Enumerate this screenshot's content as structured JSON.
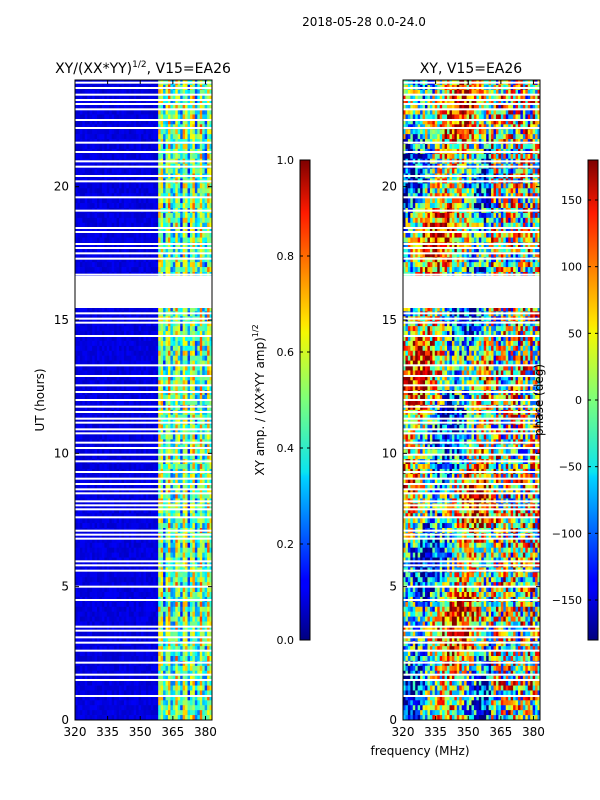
{
  "figure_title": "2018-05-28 0.0-24.0",
  "chart_data": [
    {
      "type": "heatmap",
      "title": "XY/(XX*YY)",
      "title_exponent": "1/2",
      "title_suffix": ", V15=EA26",
      "xlabel": "",
      "ylabel": "UT (hours)",
      "xlim": [
        320,
        383
      ],
      "ylim": [
        0,
        24
      ],
      "xticks": [
        "320",
        "335",
        "350",
        "365",
        "380"
      ],
      "yticks": [
        "0",
        "5",
        "10",
        "15",
        "20"
      ],
      "colormap": "jet",
      "colorbar": {
        "label": "XY amp. / (XX*YY amp)",
        "label_exponent": "1/2",
        "range": [
          0.0,
          1.0
        ],
        "ticks": [
          "0.0",
          "0.2",
          "0.4",
          "0.6",
          "0.8",
          "1.0"
        ]
      },
      "notes": "Low (~0.05) amplitude below ~358 MHz; bright vertical streaks 360-382 MHz; no data 16.5-15.5 UT gap"
    },
    {
      "type": "heatmap",
      "title": "XY, V15=EA26",
      "xlabel": "frequency (MHz)",
      "ylabel": "",
      "xlim": [
        320,
        383
      ],
      "ylim": [
        0,
        24
      ],
      "xticks": [
        "320",
        "335",
        "350",
        "365",
        "380"
      ],
      "yticks": [
        "0",
        "5",
        "10",
        "15",
        "20"
      ],
      "colormap": "jet",
      "colorbar": {
        "label": "phase (deg)",
        "range": [
          -180,
          180
        ],
        "ticks": [
          "150",
          "100",
          "50",
          "0",
          "−50",
          "−100",
          "−150"
        ]
      },
      "notes": "Phase noisy across band; data gap ~15.5-16.6 UT"
    }
  ]
}
